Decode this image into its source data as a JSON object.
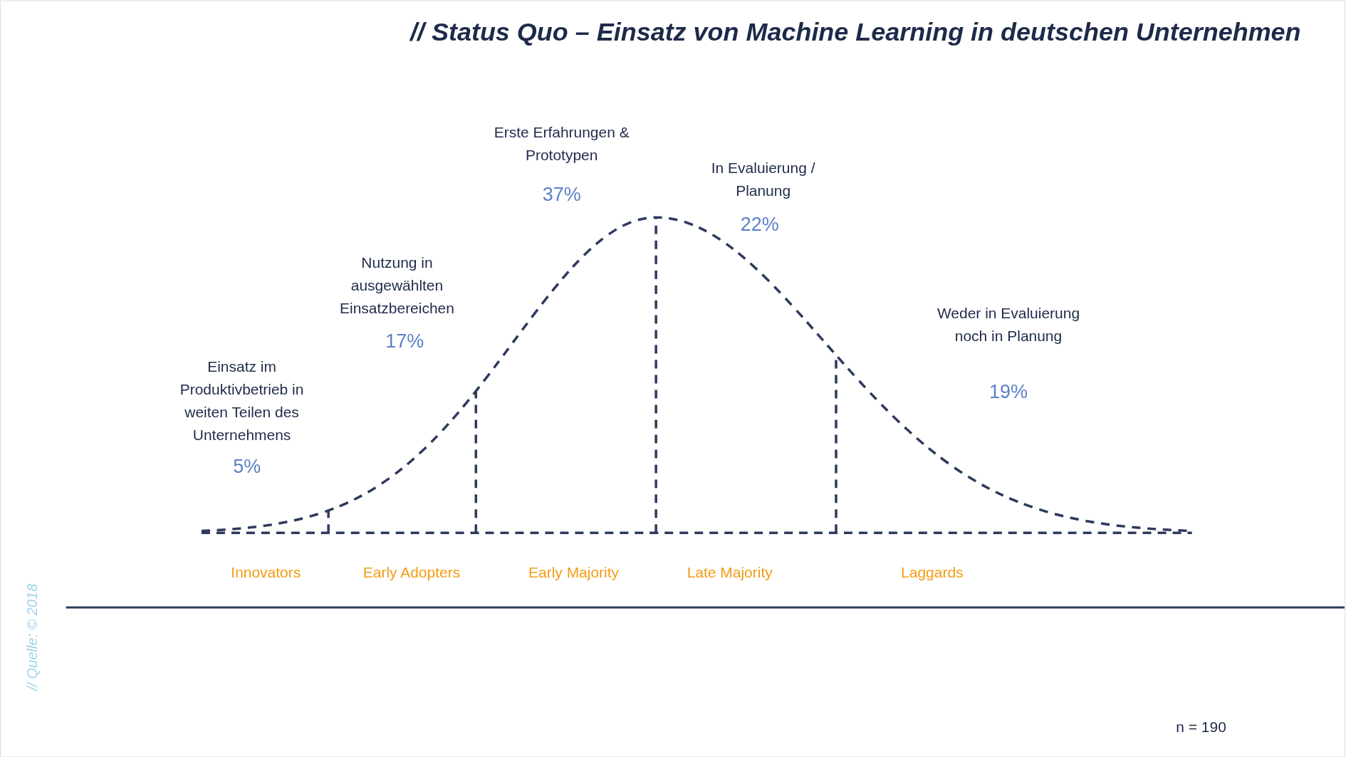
{
  "chart_data": {
    "type": "other",
    "title": "// Status Quo – Einsatz von Machine Learning in deutschen Unternehmen",
    "categories": [
      "Innovators",
      "Early Adopters",
      "Early Majority",
      "Late Majority",
      "Laggards"
    ],
    "values": [
      5,
      17,
      37,
      22,
      19
    ],
    "value_labels": [
      "5%",
      "17%",
      "37%",
      "22%",
      "19%"
    ],
    "annotations": [
      "Einsatz im\nProduktivbetrieb in\nweiten Teilen des\nUnternehmens",
      "Nutzung in\nausgewählten\nEinsatzbereichen",
      "Erste Erfahrungen &\nPrototypen",
      "In Evaluierung /\nPlanung",
      "Weder in Evaluierung\nnoch in Planung",
      "n = 190",
      "// Quelle: © 2018"
    ]
  }
}
